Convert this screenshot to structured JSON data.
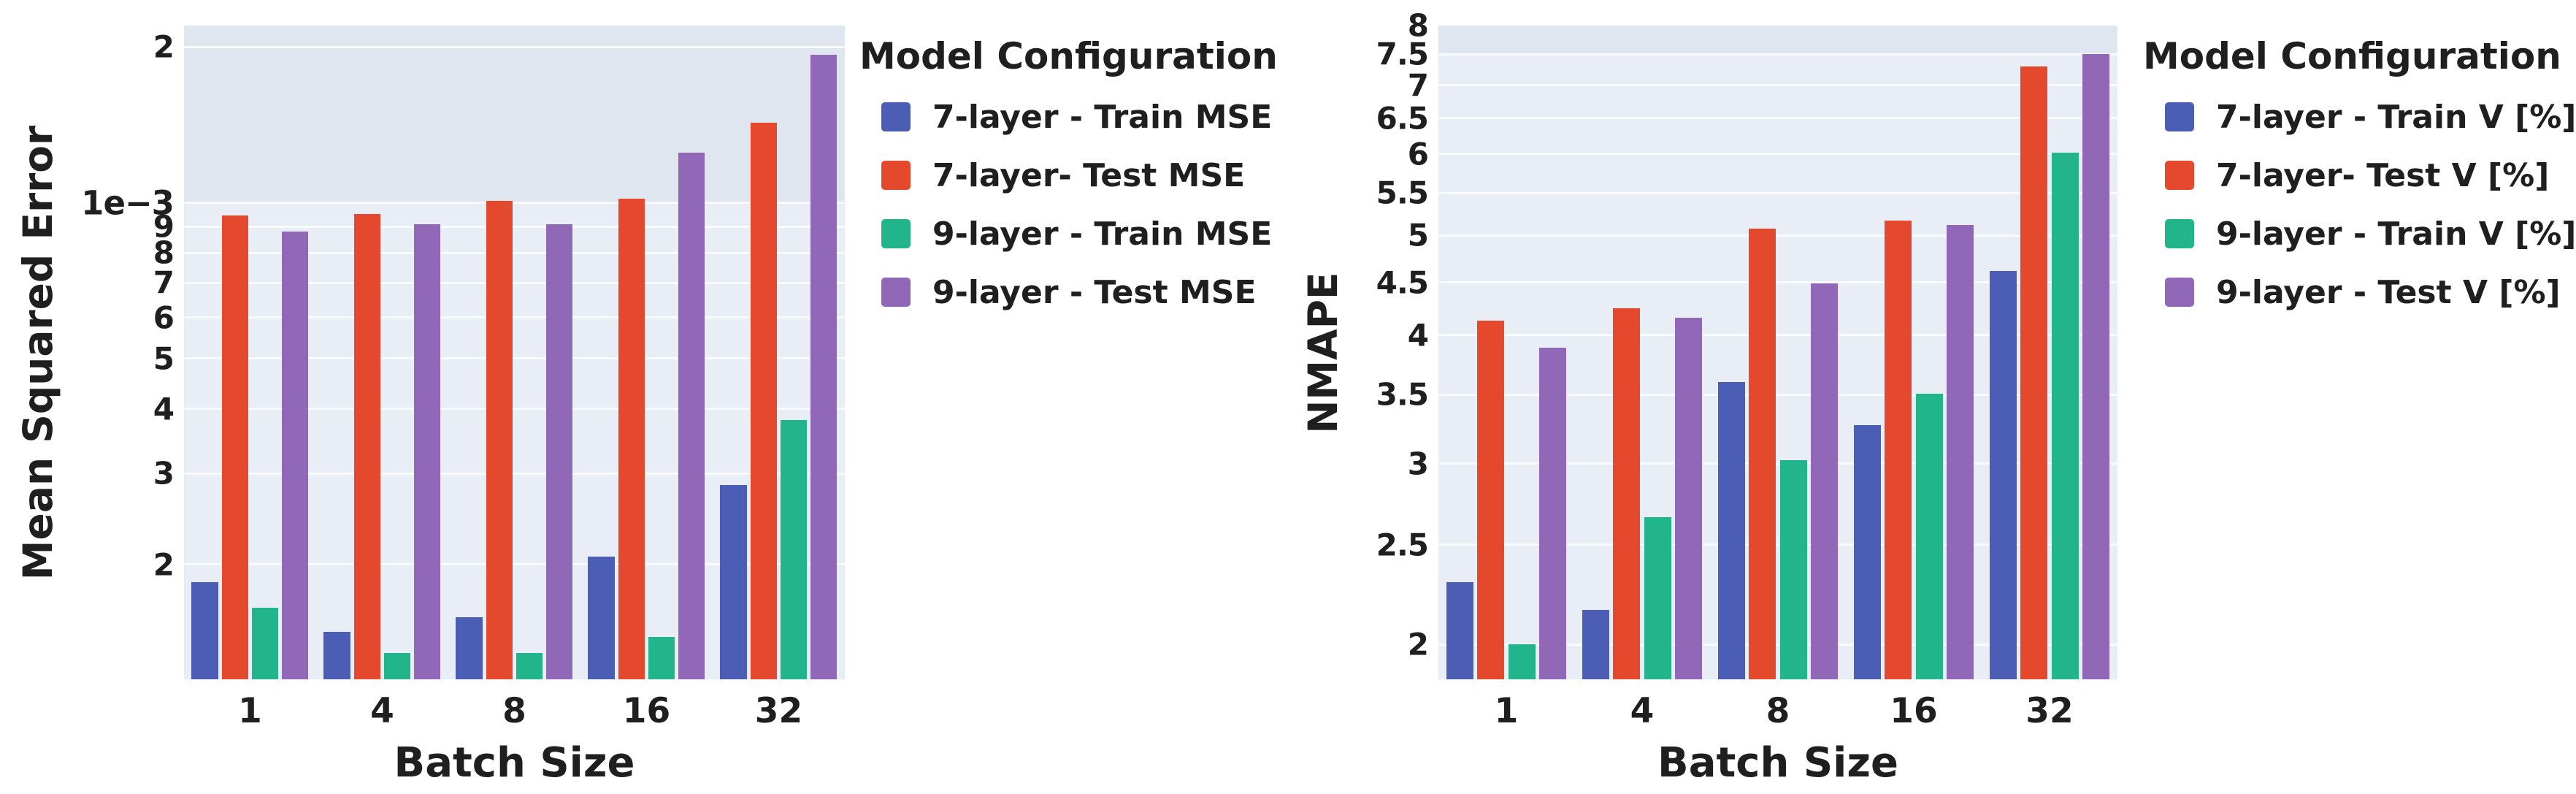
{
  "figure_background": "#ffffff",
  "colors": {
    "blue": "#4c5db6",
    "red": "#e4492e",
    "green": "#22b48a",
    "purple": "#9168b8",
    "plot_bg": "#e9edf6",
    "plot_bg_top": "#e0e6f0",
    "gridline": "#f8fafd",
    "text": "#1f1f1f"
  },
  "chart_data": [
    {
      "type": "bar",
      "yscale": "log",
      "title": "",
      "ylabel": "Mean Squared Error",
      "xlabel": "Batch Size",
      "legend_title": "Model Configuration",
      "legend_position": "right",
      "grid": true,
      "categories": [
        "1",
        "4",
        "8",
        "16",
        "32"
      ],
      "ylim": [
        0.00012,
        0.0022
      ],
      "yticks": [
        {
          "v": 0.002,
          "label": "2",
          "major": false
        },
        {
          "v": 0.001,
          "label": "1e−3",
          "major": true
        },
        {
          "v": 0.0009,
          "label": "9",
          "major": false
        },
        {
          "v": 0.0008,
          "label": "8",
          "major": false
        },
        {
          "v": 0.0007,
          "label": "7",
          "major": false
        },
        {
          "v": 0.0006,
          "label": "6",
          "major": false
        },
        {
          "v": 0.0005,
          "label": "5",
          "major": false
        },
        {
          "v": 0.0004,
          "label": "4",
          "major": false
        },
        {
          "v": 0.0003,
          "label": "3",
          "major": false
        },
        {
          "v": 0.0002,
          "label": "2",
          "major": false
        }
      ],
      "series": [
        {
          "name": "7-layer - Train MSE",
          "color_key": "blue",
          "values": [
            0.000185,
            0.000148,
            0.000158,
            0.000207,
            0.000285
          ]
        },
        {
          "name": "7-layer- Test MSE",
          "color_key": "red",
          "values": [
            0.000945,
            0.00095,
            0.00101,
            0.00102,
            0.00143
          ]
        },
        {
          "name": "9-layer - Train MSE",
          "color_key": "green",
          "values": [
            0.000165,
            0.000135,
            0.000135,
            0.000145,
            0.00038
          ]
        },
        {
          "name": "9-layer - Test MSE",
          "color_key": "purple",
          "values": [
            0.00088,
            0.00091,
            0.00091,
            0.00125,
            0.00193
          ]
        }
      ]
    },
    {
      "type": "bar",
      "yscale": "log",
      "title": "",
      "ylabel": "NMAPE",
      "xlabel": "Batch Size",
      "legend_title": "Model Configuration",
      "legend_position": "right",
      "grid": true,
      "categories": [
        "1",
        "4",
        "8",
        "16",
        "32"
      ],
      "ylim": [
        1.85,
        8
      ],
      "yticks": [
        {
          "v": 8,
          "label": "8",
          "major": false
        },
        {
          "v": 7.5,
          "label": "7.5",
          "major": false
        },
        {
          "v": 7,
          "label": "7",
          "major": false
        },
        {
          "v": 6.5,
          "label": "6.5",
          "major": false
        },
        {
          "v": 6,
          "label": "6",
          "major": false
        },
        {
          "v": 5.5,
          "label": "5.5",
          "major": false
        },
        {
          "v": 5,
          "label": "5",
          "major": false
        },
        {
          "v": 4.5,
          "label": "4.5",
          "major": false
        },
        {
          "v": 4,
          "label": "4",
          "major": false
        },
        {
          "v": 3.5,
          "label": "3.5",
          "major": false
        },
        {
          "v": 3,
          "label": "3",
          "major": false
        },
        {
          "v": 2.5,
          "label": "2.5",
          "major": false
        },
        {
          "v": 2,
          "label": "2",
          "major": false
        }
      ],
      "series": [
        {
          "name": "7-layer - Train V [%]",
          "color_key": "blue",
          "values": [
            2.3,
            2.16,
            3.6,
            3.27,
            4.62
          ]
        },
        {
          "name": "7-layer- Test V [%]",
          "color_key": "red",
          "values": [
            4.13,
            4.25,
            5.08,
            5.17,
            7.3
          ]
        },
        {
          "name": "9-layer - Train V [%]",
          "color_key": "green",
          "values": [
            2.0,
            2.66,
            3.02,
            3.51,
            6.02
          ]
        },
        {
          "name": "9-layer - Test V [%]",
          "color_key": "purple",
          "values": [
            3.89,
            4.16,
            4.49,
            5.12,
            7.5
          ]
        }
      ]
    }
  ]
}
